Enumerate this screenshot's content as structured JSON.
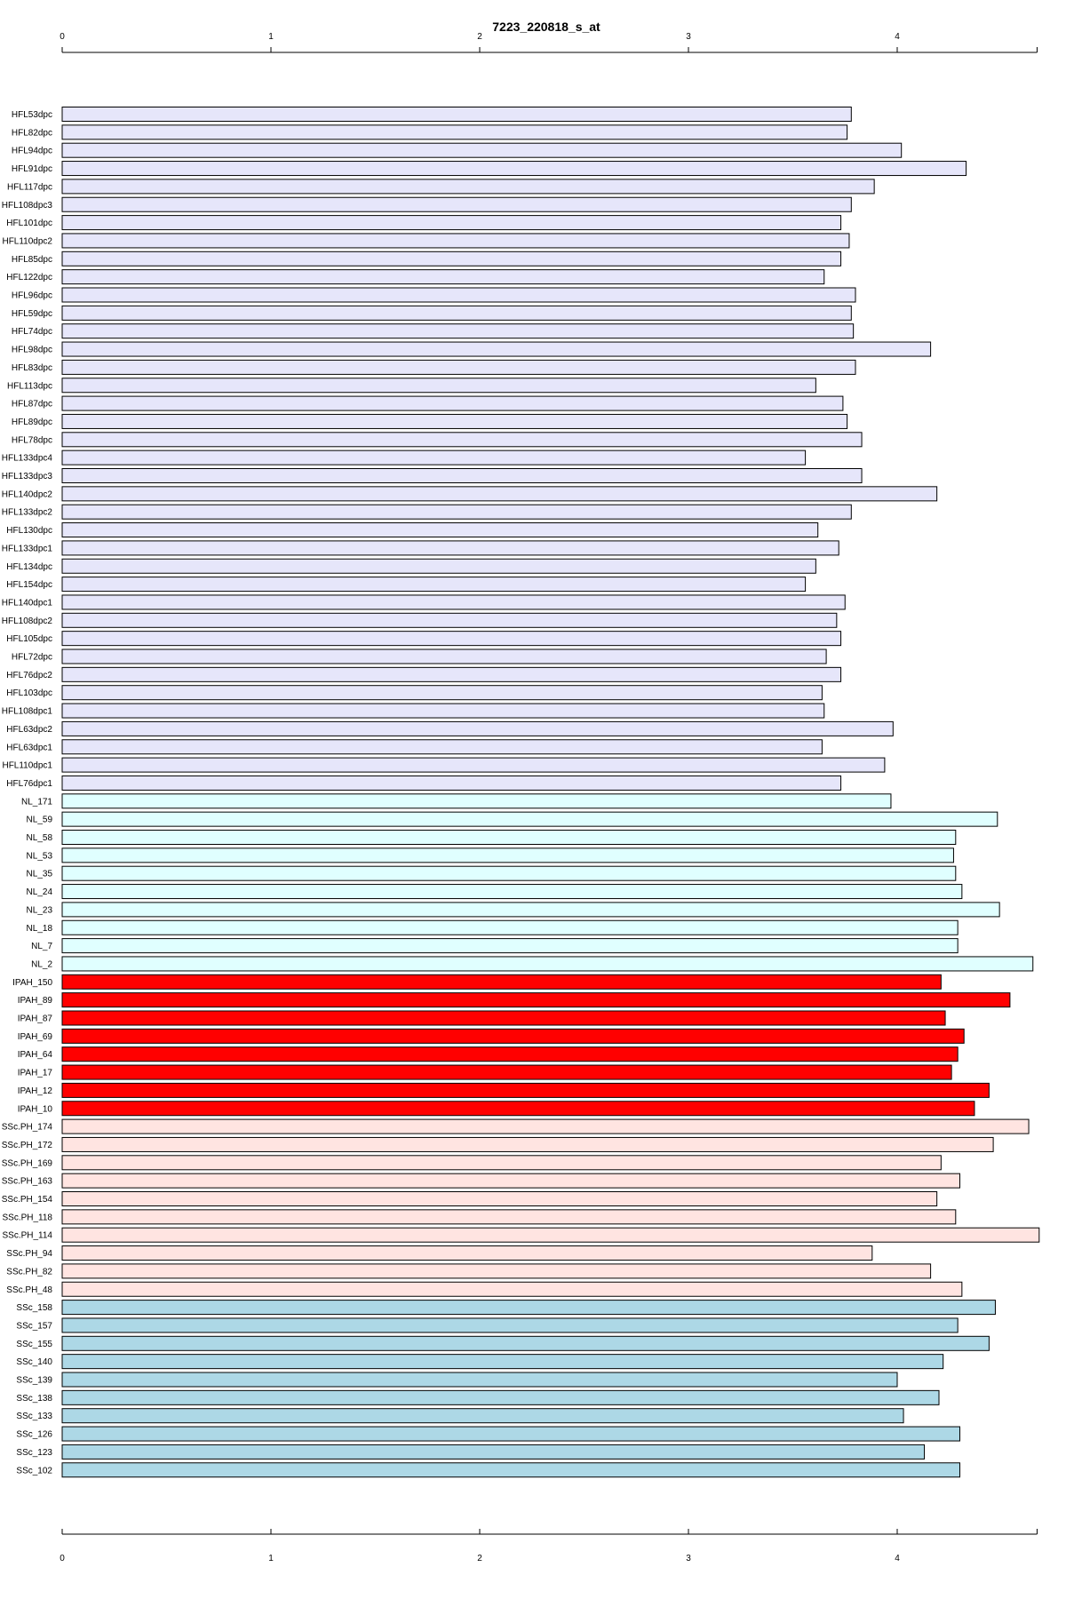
{
  "chart_data": {
    "type": "bar",
    "orientation": "horizontal",
    "title": "7223_220818_s_at",
    "xlabel": "",
    "ylabel": "",
    "xlim": [
      0,
      4.67
    ],
    "x_ticks": [
      "0",
      "1",
      "2",
      "3",
      "4"
    ],
    "grid": false,
    "legend": "none",
    "group_colors": {
      "HFL": "#e6e6fa",
      "NL": "#e0ffff",
      "IPAH": "#ff0000",
      "SSc.PH": "#ffe4e1",
      "SSc": "#add8e6"
    },
    "categories": [
      "HFL53dpc",
      "HFL82dpc",
      "HFL94dpc",
      "HFL91dpc",
      "HFL117dpc",
      "HFL108dpc3",
      "HFL101dpc",
      "HFL110dpc2",
      "HFL85dpc",
      "HFL122dpc",
      "HFL96dpc",
      "HFL59dpc",
      "HFL74dpc",
      "HFL98dpc",
      "HFL83dpc",
      "HFL113dpc",
      "HFL87dpc",
      "HFL89dpc",
      "HFL78dpc",
      "HFL133dpc4",
      "HFL133dpc3",
      "HFL140dpc2",
      "HFL133dpc2",
      "HFL130dpc",
      "HFL133dpc1",
      "HFL134dpc",
      "HFL154dpc",
      "HFL140dpc1",
      "HFL108dpc2",
      "HFL105dpc",
      "HFL72dpc",
      "HFL76dpc2",
      "HFL103dpc",
      "HFL108dpc1",
      "HFL63dpc2",
      "HFL63dpc1",
      "HFL110dpc1",
      "HFL76dpc1",
      "NL_171",
      "NL_59",
      "NL_58",
      "NL_53",
      "NL_35",
      "NL_24",
      "NL_23",
      "NL_18",
      "NL_7",
      "NL_2",
      "IPAH_150",
      "IPAH_89",
      "IPAH_87",
      "IPAH_69",
      "IPAH_64",
      "IPAH_17",
      "IPAH_12",
      "IPAH_10",
      "SSc.PH_174",
      "SSc.PH_172",
      "SSc.PH_169",
      "SSc.PH_163",
      "SSc.PH_154",
      "SSc.PH_118",
      "SSc.PH_114",
      "SSc.PH_94",
      "SSc.PH_82",
      "SSc.PH_48",
      "SSc_158",
      "SSc_157",
      "SSc_155",
      "SSc_140",
      "SSc_139",
      "SSc_138",
      "SSc_133",
      "SSc_126",
      "SSc_123",
      "SSc_102"
    ],
    "groups": [
      "HFL",
      "HFL",
      "HFL",
      "HFL",
      "HFL",
      "HFL",
      "HFL",
      "HFL",
      "HFL",
      "HFL",
      "HFL",
      "HFL",
      "HFL",
      "HFL",
      "HFL",
      "HFL",
      "HFL",
      "HFL",
      "HFL",
      "HFL",
      "HFL",
      "HFL",
      "HFL",
      "HFL",
      "HFL",
      "HFL",
      "HFL",
      "HFL",
      "HFL",
      "HFL",
      "HFL",
      "HFL",
      "HFL",
      "HFL",
      "HFL",
      "HFL",
      "HFL",
      "HFL",
      "NL",
      "NL",
      "NL",
      "NL",
      "NL",
      "NL",
      "NL",
      "NL",
      "NL",
      "NL",
      "IPAH",
      "IPAH",
      "IPAH",
      "IPAH",
      "IPAH",
      "IPAH",
      "IPAH",
      "IPAH",
      "SSc.PH",
      "SSc.PH",
      "SSc.PH",
      "SSc.PH",
      "SSc.PH",
      "SSc.PH",
      "SSc.PH",
      "SSc.PH",
      "SSc.PH",
      "SSc.PH",
      "SSc",
      "SSc",
      "SSc",
      "SSc",
      "SSc",
      "SSc",
      "SSc",
      "SSc",
      "SSc",
      "SSc"
    ],
    "values": [
      3.78,
      3.76,
      4.02,
      4.33,
      3.89,
      3.78,
      3.73,
      3.77,
      3.73,
      3.65,
      3.8,
      3.78,
      3.79,
      4.16,
      3.8,
      3.61,
      3.74,
      3.76,
      3.83,
      3.56,
      3.83,
      4.19,
      3.78,
      3.62,
      3.72,
      3.61,
      3.56,
      3.75,
      3.71,
      3.73,
      3.66,
      3.73,
      3.64,
      3.65,
      3.98,
      3.64,
      3.94,
      3.73,
      3.97,
      4.48,
      4.28,
      4.27,
      4.28,
      4.31,
      4.49,
      4.29,
      4.29,
      4.65,
      4.21,
      4.54,
      4.23,
      4.32,
      4.29,
      4.26,
      4.44,
      4.37,
      4.63,
      4.46,
      4.21,
      4.3,
      4.19,
      4.28,
      4.68,
      3.88,
      4.16,
      4.31,
      4.47,
      4.29,
      4.44,
      4.22,
      4.0,
      4.2,
      4.03,
      4.3,
      4.13,
      4.3
    ]
  }
}
